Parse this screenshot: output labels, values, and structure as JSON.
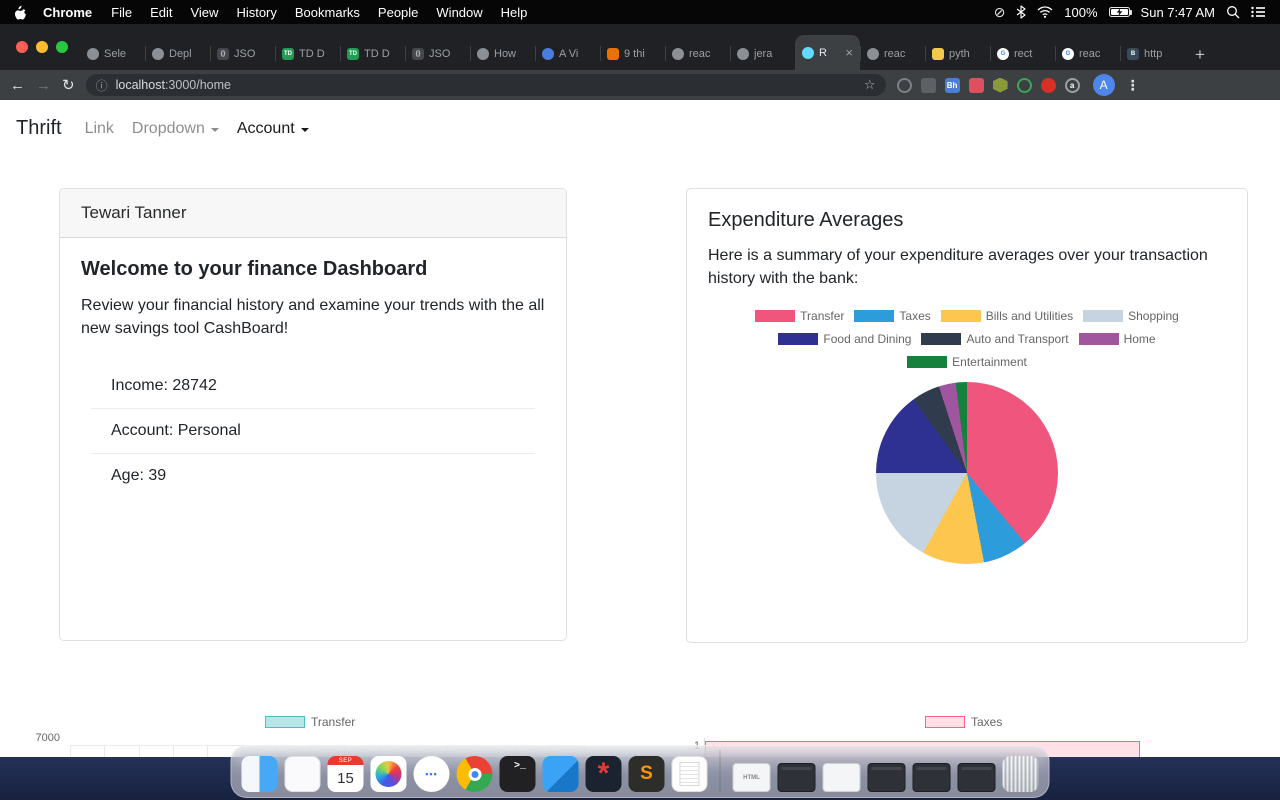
{
  "menubar": {
    "app_name": "Chrome",
    "items": [
      "File",
      "Edit",
      "View",
      "History",
      "Bookmarks",
      "People",
      "Window",
      "Help"
    ],
    "battery_label": "100%",
    "clock": "Sun 7:47 AM"
  },
  "browser": {
    "tabs": [
      {
        "label": "Sele",
        "icon": "globe"
      },
      {
        "label": "Depl",
        "icon": "globe"
      },
      {
        "label": "JSO",
        "icon": "braces"
      },
      {
        "label": "TD D",
        "icon": "td"
      },
      {
        "label": "TD D",
        "icon": "td"
      },
      {
        "label": "JSO",
        "icon": "braces"
      },
      {
        "label": "How",
        "icon": "globe"
      },
      {
        "label": "A Vi",
        "icon": "bluedot"
      },
      {
        "label": "9 thi",
        "icon": "orange"
      },
      {
        "label": "reac",
        "icon": "globe"
      },
      {
        "label": "jera",
        "icon": "globe"
      },
      {
        "label": "R",
        "icon": "react",
        "active": true,
        "close": "×"
      },
      {
        "label": "reac",
        "icon": "globe"
      },
      {
        "label": "pyth",
        "icon": "python"
      },
      {
        "label": "rect",
        "icon": "google"
      },
      {
        "label": "reac",
        "icon": "google"
      },
      {
        "label": "http",
        "icon": "httpbin"
      }
    ],
    "new_tab_label": "+",
    "address": {
      "host": "localhost",
      "rest": ":3000/home"
    },
    "bookmark_star": "☆",
    "site_info_icon": "ⓘ",
    "extensions": [
      {
        "name": "extension-1",
        "shape": "ring",
        "color": "#7d8288"
      },
      {
        "name": "extension-2",
        "shape": "square",
        "color": "#5d6165"
      },
      {
        "name": "extension-3",
        "shape": "square",
        "color": "#4a7fd4",
        "label": "Bh"
      },
      {
        "name": "extension-4",
        "shape": "square",
        "color": "#e04f5f"
      },
      {
        "name": "extension-5",
        "shape": "hex",
        "color": "#8a9a3a"
      },
      {
        "name": "extension-6",
        "shape": "ring",
        "color": "#3aa757"
      },
      {
        "name": "extension-7",
        "shape": "circle",
        "color": "#d93025"
      },
      {
        "name": "extension-8",
        "shape": "ring",
        "color": "#9aa0a6",
        "label": "a"
      }
    ],
    "avatar_letter": "A"
  },
  "site": {
    "navbar": {
      "brand": "Thrift",
      "links": [
        {
          "label": "Link",
          "muted": true,
          "caret": false
        },
        {
          "label": "Dropdown",
          "muted": true,
          "caret": true
        },
        {
          "label": "Account",
          "muted": false,
          "caret": true
        }
      ]
    },
    "profile_card": {
      "header": "Tewari Tanner",
      "title": "Welcome to your finance Dashboard",
      "description": "Review your financial history and examine your trends with the all new savings tool CashBoard!",
      "items": [
        "Income: 28742",
        "Account: Personal",
        "Age: 39"
      ]
    },
    "expenditure_card": {
      "title": "Expenditure Averages",
      "description": "Here is a summary of your expenditure averages over your transaction history with the bank:"
    }
  },
  "chart_data": [
    {
      "type": "pie",
      "title": "Expenditure Averages",
      "labels": [
        "Transfer",
        "Taxes",
        "Bills and Utilities",
        "Shopping",
        "Food and Dining",
        "Auto and Transport",
        "Home",
        "Entertainment"
      ],
      "values": [
        39,
        8,
        11,
        17,
        15,
        5,
        3,
        2
      ],
      "colors": [
        "#f0557d",
        "#2d9cdb",
        "#fdc64f",
        "#c6d3e1",
        "#2e3192",
        "#303b4d",
        "#a0569f",
        "#15813c"
      ],
      "legend_position": "top",
      "units": "percent of total (estimated from slice angles)"
    },
    {
      "type": "bar",
      "series": [
        {
          "name": "Transfer"
        }
      ],
      "legend_fill": "rgba(75,192,192,0.4)",
      "legend_border": "#4bc0c0",
      "y_axis_top_tick": "7000",
      "note": "chart mostly cut off at bottom of viewport"
    },
    {
      "type": "horizontal-bar",
      "series": [
        {
          "name": "Taxes"
        }
      ],
      "categories": [
        "1"
      ],
      "bar_fill": "rgba(255,99,132,0.2)",
      "bar_border": "#ff6384",
      "note": "chart mostly cut off at bottom of viewport"
    }
  ],
  "dock": {
    "items": [
      {
        "name": "finder",
        "type": "finder"
      },
      {
        "name": "notes",
        "type": "whiteapp"
      },
      {
        "name": "calendar",
        "type": "calendar",
        "month": "SEP",
        "day": "15"
      },
      {
        "name": "photos",
        "type": "photos"
      },
      {
        "name": "messages",
        "type": "messages",
        "glyph": "•••"
      },
      {
        "name": "chrome",
        "type": "chrome"
      },
      {
        "name": "terminal",
        "type": "terminal",
        "glyph": ">_"
      },
      {
        "name": "vscode",
        "type": "vscode"
      },
      {
        "name": "web-tool",
        "type": "web",
        "glyph": "*"
      },
      {
        "name": "sublime-text",
        "type": "sublime",
        "glyph": "S"
      },
      {
        "name": "textedit",
        "type": "document"
      },
      {
        "name": "dock-separator",
        "type": "separator"
      },
      {
        "name": "minimized-window-html",
        "type": "winlight",
        "glyph": "HTML"
      },
      {
        "name": "minimized-window-terminal",
        "type": "windark"
      },
      {
        "name": "minimized-window-doc",
        "type": "winlight"
      },
      {
        "name": "minimized-window-code-1",
        "type": "windark"
      },
      {
        "name": "minimized-window-code-2",
        "type": "windark"
      },
      {
        "name": "minimized-window-code-3",
        "type": "windark"
      },
      {
        "name": "trash",
        "type": "trash"
      }
    ]
  }
}
